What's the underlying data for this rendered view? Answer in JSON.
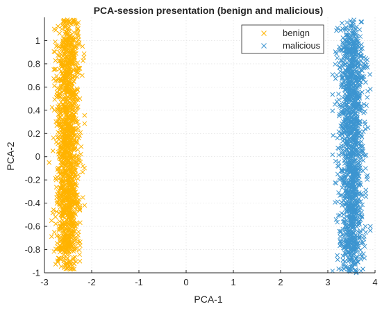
{
  "chart_data": {
    "type": "scatter",
    "title": "PCA-session presentation (benign and malicious)",
    "xlabel": "PCA-1",
    "ylabel": "PCA-2",
    "xlim": [
      -3,
      4
    ],
    "ylim": [
      -1,
      1.2
    ],
    "xticks": [
      "-3",
      "-2",
      "-1",
      "0",
      "1",
      "2",
      "3",
      "4"
    ],
    "xtick_values": [
      -3,
      -2,
      -1,
      0,
      1,
      2,
      3,
      4
    ],
    "yticks": [
      "-1",
      "-0.8",
      "-0.6",
      "-0.4",
      "-0.2",
      "0",
      "0.2",
      "0.4",
      "0.6",
      "0.8",
      "1"
    ],
    "ytick_values": [
      -1,
      -0.8,
      -0.6,
      -0.4,
      -0.2,
      0,
      0.2,
      0.4,
      0.6,
      0.8,
      1
    ],
    "grid": true,
    "legend_position": "top-right",
    "marker": "x",
    "series": [
      {
        "name": "benign",
        "color": "#FFB300",
        "x_center": -2.5,
        "x_range": [
          -2.9,
          -2.15
        ],
        "y_range": [
          -0.97,
          1.18
        ],
        "points": [
          [
            -2.82,
            0.05
          ],
          [
            -2.85,
            -0.55
          ],
          [
            -2.9,
            -0.05
          ],
          [
            -2.25,
            -0.9
          ],
          [
            -2.45,
            -0.97
          ],
          [
            -2.6,
            -0.82
          ],
          [
            -2.35,
            1.17
          ],
          [
            -2.3,
            1.1
          ],
          [
            -2.75,
            0.95
          ],
          [
            -2.2,
            0.7
          ],
          [
            -2.55,
            0.9
          ],
          [
            -2.4,
            -0.6
          ],
          [
            -2.7,
            0.4
          ],
          [
            -2.3,
            0.3
          ],
          [
            -2.6,
            -0.3
          ],
          [
            -2.5,
            0.1
          ],
          [
            -2.45,
            -0.1
          ],
          [
            -2.65,
            0.6
          ],
          [
            -2.35,
            -0.4
          ],
          [
            -2.55,
            0.2
          ],
          [
            -2.75,
            -0.2
          ],
          [
            -2.25,
            0.5
          ],
          [
            -2.8,
            0.75
          ],
          [
            -2.3,
            -0.7
          ],
          [
            -2.4,
            0.85
          ]
        ]
      },
      {
        "name": "malicious",
        "color": "#3D95D0",
        "x_center": 3.5,
        "x_range": [
          3.1,
          3.9
        ],
        "y_range": [
          -1.0,
          1.18
        ],
        "points": [
          [
            3.15,
            0.45
          ],
          [
            3.2,
            -0.85
          ],
          [
            3.85,
            0.25
          ],
          [
            3.9,
            -0.6
          ],
          [
            3.3,
            1.15
          ],
          [
            3.7,
            1.16
          ],
          [
            3.45,
            -0.98
          ],
          [
            3.6,
            -1.0
          ],
          [
            3.4,
            0.0
          ],
          [
            3.55,
            0.3
          ],
          [
            3.5,
            -0.3
          ],
          [
            3.35,
            0.65
          ],
          [
            3.65,
            -0.5
          ],
          [
            3.25,
            -0.2
          ],
          [
            3.75,
            0.8
          ],
          [
            3.45,
            0.9
          ],
          [
            3.6,
            -0.75
          ],
          [
            3.3,
            0.2
          ],
          [
            3.7,
            0.05
          ],
          [
            3.5,
            0.55
          ],
          [
            3.4,
            -0.6
          ],
          [
            3.8,
            -0.1
          ],
          [
            3.2,
            0.85
          ],
          [
            3.55,
            -0.9
          ],
          [
            3.65,
            0.6
          ]
        ]
      }
    ]
  }
}
